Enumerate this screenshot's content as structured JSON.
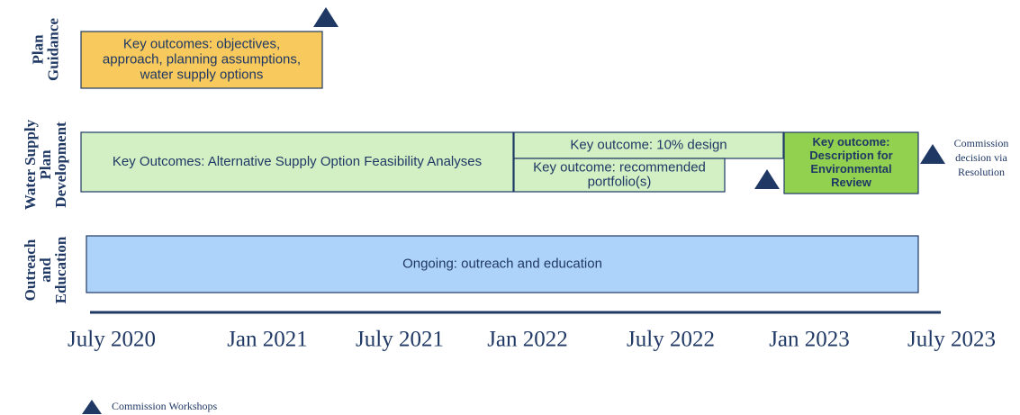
{
  "rows": [
    {
      "label": [
        "Plan",
        "Guidance"
      ]
    },
    {
      "label": [
        "Water Supply",
        "Plan",
        "Development"
      ]
    },
    {
      "label": [
        "Outreach",
        "and",
        "Education"
      ]
    }
  ],
  "boxes": [
    {
      "text": [
        "Key outcomes: objectives,",
        "approach, planning assumptions,",
        "water supply options"
      ]
    },
    {
      "text": [
        "Key Outcomes: Alternative Supply Option Feasibility Analyses"
      ]
    },
    {
      "text": [
        "Key outcome: 10% design"
      ]
    },
    {
      "text": [
        "Key outcome: recommended",
        "portfolio(s)"
      ]
    },
    {
      "text": [
        "Key outcome:",
        "Description for",
        "Environmental",
        "Review"
      ]
    },
    {
      "text": [
        "Ongoing: outreach and education"
      ]
    }
  ],
  "timeline": [
    "July 2020",
    "Jan 2021",
    "July 2021",
    "Jan 2022",
    "July 2022",
    "Jan 2023",
    "July 2023"
  ],
  "annotation": [
    "Commission",
    "decision via",
    "Resolution"
  ],
  "legend": "Commission Workshops"
}
